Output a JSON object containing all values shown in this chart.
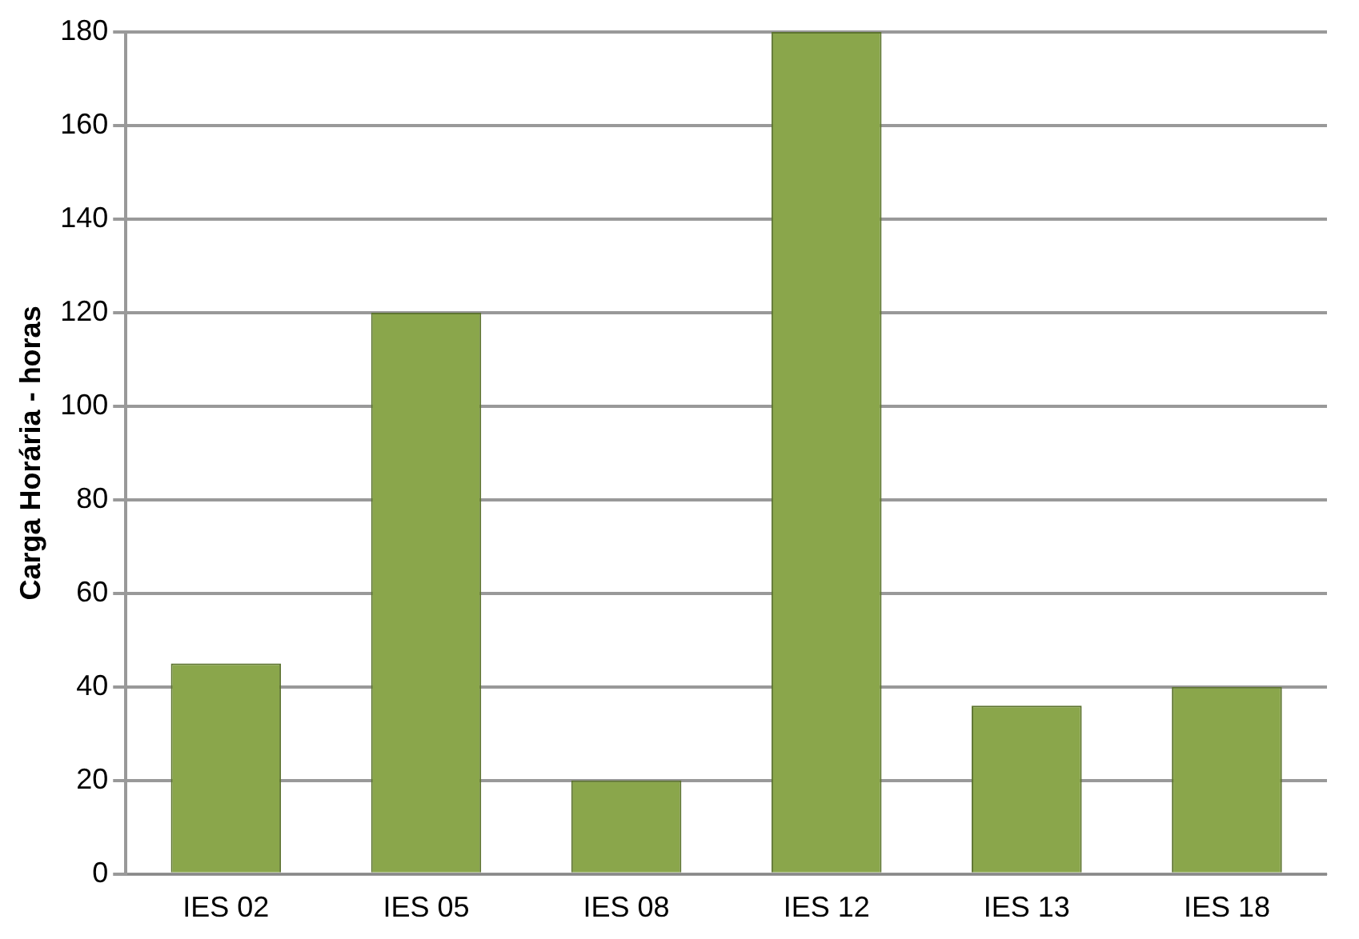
{
  "chart_data": {
    "type": "bar",
    "ylabel": "Carga Horária - horas",
    "categories": [
      "IES 02",
      "IES 05",
      "IES 08",
      "IES 12",
      "IES 13",
      "IES 18"
    ],
    "values": [
      45,
      120,
      20,
      180,
      36,
      40
    ],
    "color": "#8aa64b",
    "ylim": [
      0,
      180
    ],
    "yticks": [
      0,
      20,
      40,
      60,
      80,
      100,
      120,
      140,
      160,
      180
    ],
    "grid": "y",
    "legend": false
  }
}
